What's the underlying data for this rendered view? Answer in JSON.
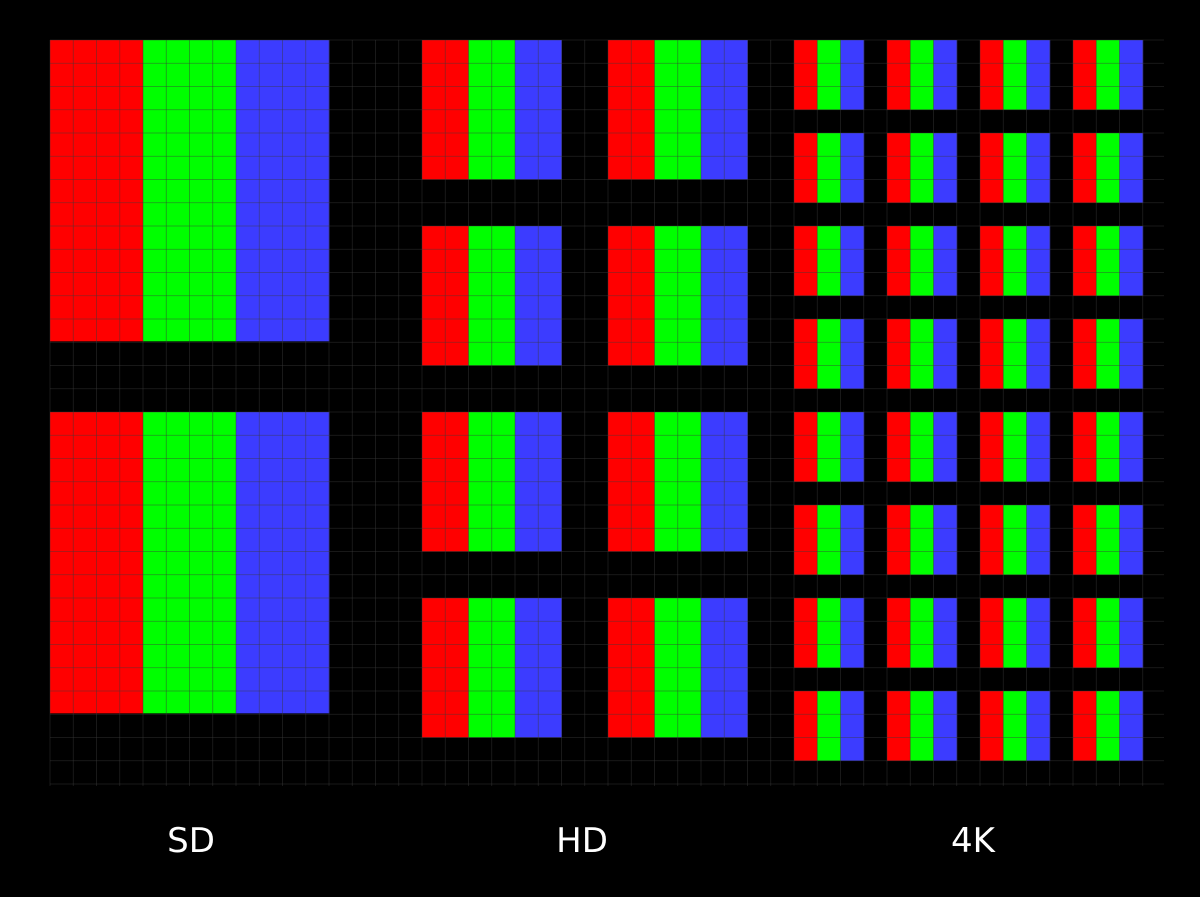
{
  "colors": {
    "background": "#000000",
    "grid_line": "#3a3a3a",
    "subpixel_red": "#ff0000",
    "subpixel_green": "#00ff00",
    "subpixel_blue": "#3c3cff"
  },
  "panels": [
    {
      "id": "sd",
      "label": "SD",
      "pixel_columns": 1,
      "pixel_rows": 2,
      "subpixel_order": [
        "red",
        "green",
        "blue"
      ]
    },
    {
      "id": "hd",
      "label": "HD",
      "pixel_columns": 2,
      "pixel_rows": 4,
      "subpixel_order": [
        "red",
        "green",
        "blue"
      ]
    },
    {
      "id": "4k",
      "label": "4K",
      "pixel_columns": 4,
      "pixel_rows": 8,
      "subpixel_order": [
        "red",
        "green",
        "blue"
      ]
    }
  ]
}
